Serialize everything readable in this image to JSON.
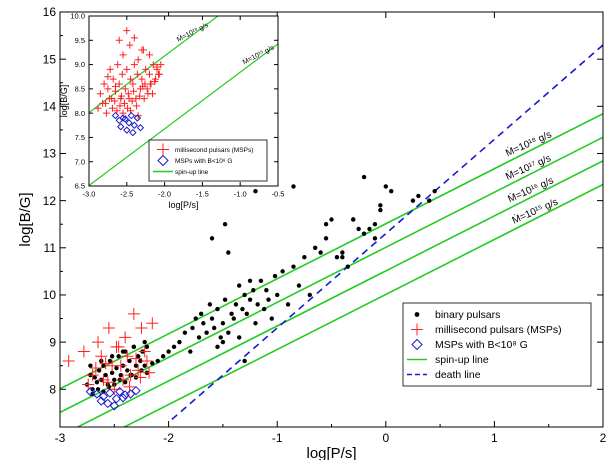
{
  "chart_data": [
    {
      "id": "main",
      "type": "scatter",
      "xlabel": "log[P/s]",
      "ylabel": "log[B/G]",
      "xlim": [
        -3,
        2
      ],
      "ylim": [
        7.2,
        16
      ],
      "xticks": [
        -3,
        -2,
        -1,
        0,
        1,
        2
      ],
      "xtick_labels": [
        "-3",
        "-2",
        "-1",
        "0",
        "1",
        "2"
      ],
      "yticks": [
        8,
        9,
        10,
        11,
        12,
        13,
        14,
        15,
        16
      ],
      "ytick_labels": [
        "8",
        "9",
        "10",
        "11",
        "12",
        "13",
        "14",
        "15",
        "16"
      ],
      "legend_position": "lower-right",
      "legend": [
        {
          "label": "binary pulsars",
          "marker": "dot",
          "color": "#000000"
        },
        {
          "label": "millisecond pulsars (MSPs)",
          "marker": "plus",
          "color": "#ff2020"
        },
        {
          "label": "MSPs with B<10⁸ G",
          "marker": "diamond",
          "color": "#1a1acc"
        },
        {
          "label": "spin-up line",
          "marker": "line",
          "color": "#22cc22"
        },
        {
          "label": "death line",
          "marker": "dashed",
          "color": "#1a1acc"
        }
      ],
      "spin_up_lines": [
        {
          "label": "Ṁ=10¹⁸ g/s",
          "intercept": 11.51
        },
        {
          "label": "Ṁ=10¹⁷ g/s",
          "intercept": 11.01
        },
        {
          "label": "Ṁ=10¹⁶ g/s",
          "intercept": 10.51
        },
        {
          "label": "Ṁ=10¹⁵ g/s",
          "intercept": 10.01
        }
      ],
      "spin_up_slope": 1.1667,
      "spin_up_x_range": [
        -3,
        2
      ],
      "death_line": {
        "slope": 2.0,
        "intercept": 11.3,
        "x_range": [
          -1.97,
          2
        ]
      },
      "series": [
        {
          "name": "binary pulsars",
          "x": [
            -2.75,
            -2.72,
            -2.7,
            -2.68,
            -2.66,
            -2.64,
            -2.62,
            -2.6,
            -2.58,
            -2.56,
            -2.54,
            -2.52,
            -2.5,
            -2.48,
            -2.46,
            -2.44,
            -2.42,
            -2.4,
            -2.38,
            -2.36,
            -2.34,
            -2.32,
            -2.3,
            -2.28,
            -2.26,
            -2.24,
            -2.22,
            -2.2,
            -2.7,
            -2.65,
            -2.6,
            -2.55,
            -2.5,
            -2.45,
            -2.4,
            -2.35,
            -2.3,
            -2.25,
            -2.2,
            -2.15,
            -2.1,
            -2.05,
            -2.0,
            -1.95,
            -2.72,
            -2.62,
            -2.52,
            -2.42,
            -2.32,
            -2.22,
            -1.9,
            -1.85,
            -1.8,
            -1.78,
            -1.75,
            -1.72,
            -1.7,
            -1.68,
            -1.65,
            -1.62,
            -1.6,
            -1.58,
            -1.55,
            -1.52,
            -1.5,
            -1.48,
            -1.45,
            -1.42,
            -1.4,
            -1.38,
            -1.35,
            -1.32,
            -1.3,
            -1.28,
            -1.25,
            -1.22,
            -1.2,
            -1.18,
            -1.15,
            -1.12,
            -1.1,
            -1.08,
            -1.05,
            -1.02,
            -1.0,
            -0.95,
            -0.9,
            -0.85,
            -0.8,
            -0.75,
            -0.7,
            -0.65,
            -0.6,
            -0.55,
            -0.5,
            -0.45,
            -0.4,
            -0.35,
            -0.3,
            -0.25,
            -0.2,
            -0.15,
            -0.1,
            -0.05,
            0.0,
            0.05,
            0.25,
            0.3,
            0.4,
            0.45,
            -1.45,
            -1.48,
            -1.6,
            -1.25,
            -1.2,
            -0.85,
            -0.55,
            -0.4,
            -1.3,
            -1.5,
            -1.55,
            -1.35,
            -0.3,
            -0.2,
            -0.05,
            -0.1
          ],
          "y": [
            8.1,
            8.3,
            8.0,
            8.25,
            8.15,
            8.4,
            8.2,
            8.5,
            8.3,
            8.1,
            8.6,
            8.35,
            8.2,
            8.45,
            8.7,
            8.3,
            8.5,
            8.8,
            8.4,
            8.6,
            8.3,
            8.9,
            8.5,
            8.7,
            8.6,
            8.8,
            8.5,
            8.9,
            7.9,
            8.0,
            7.95,
            8.05,
            8.1,
            8.2,
            8.15,
            8.3,
            8.25,
            8.4,
            8.35,
            8.55,
            8.6,
            8.7,
            8.8,
            8.9,
            8.5,
            8.6,
            8.7,
            8.8,
            8.9,
            9.0,
            9.0,
            9.2,
            8.8,
            9.3,
            9.5,
            9.1,
            9.6,
            9.4,
            9.2,
            9.8,
            9.5,
            9.3,
            9.7,
            9.1,
            9.4,
            9.9,
            9.2,
            9.6,
            9.5,
            9.8,
            10.2,
            9.7,
            10.0,
            9.6,
            9.9,
            10.1,
            9.4,
            9.8,
            10.3,
            9.7,
            10.1,
            9.9,
            9.5,
            10.4,
            10.0,
            10.5,
            9.8,
            10.6,
            10.2,
            10.8,
            10.0,
            11.0,
            10.9,
            11.2,
            11.6,
            10.8,
            10.9,
            10.6,
            11.6,
            11.4,
            11.3,
            11.4,
            11.2,
            11.8,
            12.3,
            12.2,
            12.0,
            12.1,
            12.0,
            12.2,
            10.9,
            11.5,
            11.2,
            10.3,
            12.2,
            12.3,
            11.5,
            10.8,
            8.6,
            9.0,
            8.9,
            9.1,
            11.6,
            12.5,
            11.9,
            11.5
          ]
        },
        {
          "name": "millisecond pulsars (MSPs)",
          "x": [
            -2.92,
            -2.78,
            -2.65,
            -2.55,
            -2.48,
            -2.4,
            -2.32,
            -2.25,
            -2.15,
            -2.52,
            -2.38,
            -2.22,
            -2.28,
            -2.6,
            -2.44,
            -2.7,
            -2.74,
            -2.5,
            -2.35,
            -2.2,
            -2.58,
            -2.42,
            -2.62,
            -2.46,
            -2.3,
            -2.18,
            -2.67,
            -2.56,
            -2.36,
            -2.26
          ],
          "y": [
            8.6,
            8.8,
            9.0,
            9.3,
            8.9,
            9.1,
            9.6,
            9.3,
            9.4,
            8.5,
            8.7,
            8.8,
            8.4,
            8.2,
            8.5,
            8.3,
            8.1,
            8.0,
            8.3,
            8.6,
            8.55,
            8.2,
            8.7,
            8.9,
            8.65,
            8.35,
            8.45,
            8.15,
            8.05,
            8.25
          ]
        },
        {
          "name": "MSPs with B<10⁸ G",
          "x": [
            -2.72,
            -2.66,
            -2.6,
            -2.54,
            -2.5,
            -2.45,
            -2.4,
            -2.35,
            -2.3,
            -2.56,
            -2.48,
            -2.62,
            -2.42
          ],
          "y": [
            7.95,
            7.9,
            7.85,
            7.92,
            7.65,
            7.95,
            7.88,
            7.9,
            7.97,
            7.7,
            7.8,
            7.75,
            7.82
          ]
        }
      ]
    },
    {
      "id": "inset",
      "type": "scatter",
      "xlabel": "log[P/s]",
      "ylabel": "log[B/G]",
      "xlim": [
        -3.0,
        -0.5
      ],
      "ylim": [
        6.5,
        10.0
      ],
      "xticks": [
        -3.0,
        -2.5,
        -2.0,
        -1.5,
        -1.0,
        -0.5
      ],
      "xtick_labels": [
        "-3.0",
        "-2.5",
        "-2.0",
        "-1.5",
        "-1.0",
        "-0.5"
      ],
      "yticks": [
        6.5,
        7.0,
        7.5,
        8.0,
        8.5,
        9.0,
        9.5,
        10.0
      ],
      "ytick_labels": [
        "6.5",
        "7.0",
        "7.5",
        "8.0",
        "8.5",
        "9.0",
        "9.5",
        "10.0"
      ],
      "legend_position": "lower-right",
      "legend": [
        {
          "label": "millisecond pulsars (MSPs)",
          "marker": "plus",
          "color": "#ff2020"
        },
        {
          "label": "MSPs with B<10⁸ G",
          "marker": "diamond",
          "color": "#1a1acc"
        },
        {
          "label": "spin-up line",
          "marker": "line",
          "color": "#22cc22"
        }
      ],
      "spin_up_lines": [
        {
          "label": "Ṁ=10¹⁸ g/s",
          "intercept": 11.51
        },
        {
          "label": "Ṁ=10¹⁵ g/s",
          "intercept": 10.01
        }
      ],
      "spin_up_slope": 1.1667,
      "series": [
        {
          "name": "millisecond pulsars (MSPs)",
          "x": [
            -2.88,
            -2.85,
            -2.8,
            -2.78,
            -2.75,
            -2.72,
            -2.7,
            -2.68,
            -2.65,
            -2.62,
            -2.6,
            -2.58,
            -2.56,
            -2.55,
            -2.52,
            -2.5,
            -2.48,
            -2.46,
            -2.45,
            -2.42,
            -2.4,
            -2.38,
            -2.36,
            -2.35,
            -2.32,
            -2.3,
            -2.28,
            -2.26,
            -2.25,
            -2.22,
            -2.2,
            -2.18,
            -2.15,
            -2.12,
            -2.1,
            -2.08,
            -2.05,
            -2.82,
            -2.77,
            -2.73,
            -2.69,
            -2.66,
            -2.63,
            -2.59,
            -2.57,
            -2.53,
            -2.49,
            -2.47,
            -2.43,
            -2.41,
            -2.37,
            -2.33,
            -2.29,
            -2.27,
            -2.23,
            -2.19,
            -2.16,
            -2.13,
            -2.07,
            -2.6,
            -2.5,
            -2.4,
            -2.3,
            -2.55,
            -2.45,
            -2.35,
            -2.65,
            -2.75,
            -2.2,
            -2.1
          ],
          "y": [
            8.1,
            8.4,
            8.6,
            8.2,
            8.5,
            8.9,
            8.3,
            8.7,
            8.45,
            9.0,
            8.6,
            8.3,
            8.8,
            9.2,
            8.5,
            8.9,
            8.4,
            9.4,
            8.7,
            8.6,
            9.0,
            8.3,
            8.8,
            9.1,
            8.5,
            8.7,
            9.3,
            8.6,
            8.9,
            8.4,
            8.8,
            8.6,
            9.0,
            8.7,
            8.9,
            8.8,
            9.0,
            8.2,
            8.0,
            8.3,
            8.1,
            8.25,
            8.05,
            8.15,
            8.35,
            8.2,
            8.1,
            8.3,
            8.25,
            8.45,
            8.15,
            8.35,
            8.55,
            8.3,
            8.5,
            8.6,
            8.4,
            8.65,
            8.8,
            9.5,
            9.7,
            9.55,
            9.3,
            8.0,
            8.05,
            7.95,
            8.55,
            8.75,
            9.2,
            8.95
          ]
        },
        {
          "name": "MSPs with B<10⁸ G",
          "x": [
            -2.65,
            -2.6,
            -2.55,
            -2.5,
            -2.47,
            -2.44,
            -2.4,
            -2.36,
            -2.32,
            -2.58,
            -2.52,
            -2.42
          ],
          "y": [
            7.95,
            7.85,
            7.9,
            7.65,
            7.8,
            7.95,
            7.75,
            7.9,
            7.7,
            7.72,
            7.88,
            7.6
          ]
        }
      ]
    }
  ]
}
